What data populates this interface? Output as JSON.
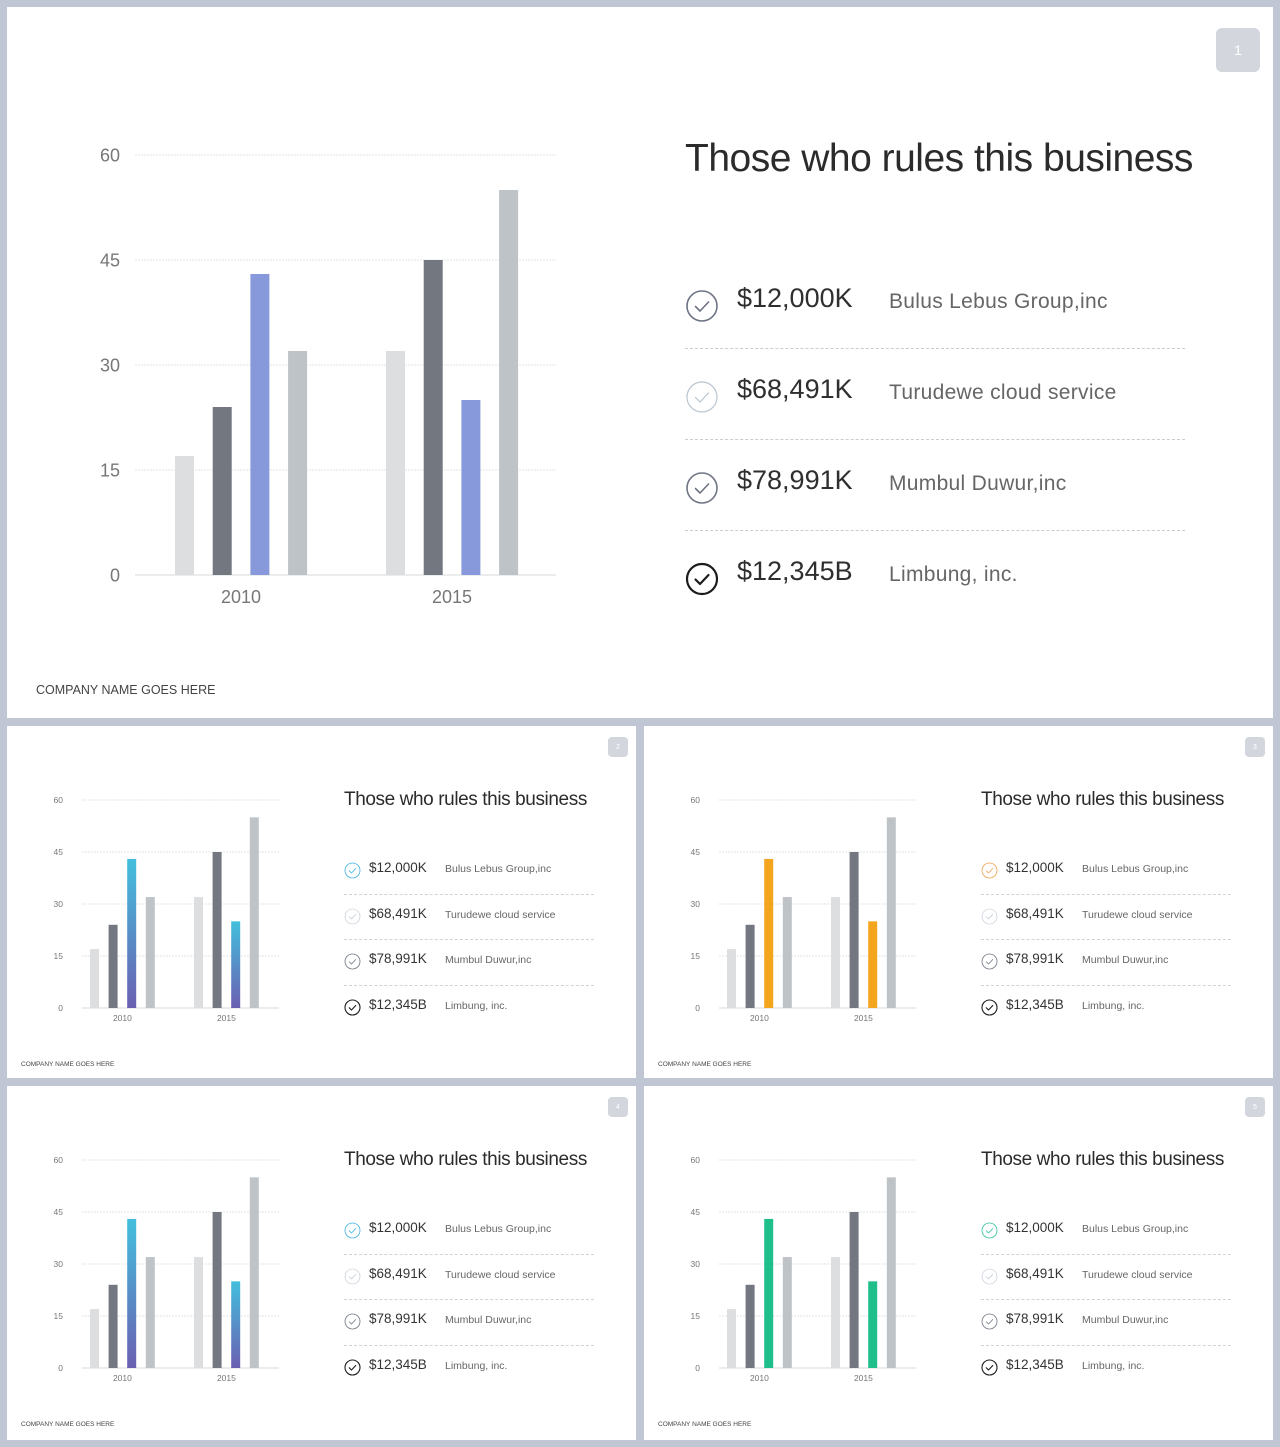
{
  "colors": {
    "light": "#dcdee0",
    "dark": "#737780",
    "silver": "#bec3c7",
    "grid": "#e1e3e6",
    "axis_text": "#777777"
  },
  "slides": [
    {
      "page": "1",
      "title": "Those who rules this business",
      "footer": "COMPANY NAME GOES HERE",
      "accent": "#8799db",
      "accent_gradient": null,
      "first_icon_color": "#6d7384",
      "items": [
        {
          "amount": "$12,000K",
          "company": "Bulus Lebus Group,inc"
        },
        {
          "amount": "$68,491K",
          "company": "Turudewe cloud service"
        },
        {
          "amount": "$78,991K",
          "company": "Mumbul Duwur,inc"
        },
        {
          "amount": "$12,345B",
          "company": "Limbung, inc."
        }
      ]
    },
    {
      "page": "2",
      "title": "Those who rules this business",
      "footer": "COMPANY NAME GOES HERE",
      "accent": "#49b3d6",
      "accent_gradient": [
        "#42bfdd",
        "#6b5fb2"
      ],
      "first_icon_color": "#3db0db",
      "items": [
        {
          "amount": "$12,000K",
          "company": "Bulus Lebus Group,inc"
        },
        {
          "amount": "$68,491K",
          "company": "Turudewe cloud service"
        },
        {
          "amount": "$78,991K",
          "company": "Mumbul Duwur,inc"
        },
        {
          "amount": "$12,345B",
          "company": "Limbung, inc."
        }
      ]
    },
    {
      "page": "3",
      "title": "Those who rules this business",
      "footer": "COMPANY NAME GOES HERE",
      "accent": "#f4a51e",
      "accent_gradient": null,
      "first_icon_color": "#f0a04b",
      "items": [
        {
          "amount": "$12,000K",
          "company": "Bulus Lebus Group,inc"
        },
        {
          "amount": "$68,491K",
          "company": "Turudewe cloud service"
        },
        {
          "amount": "$78,991K",
          "company": "Mumbul Duwur,inc"
        },
        {
          "amount": "$12,345B",
          "company": "Limbung, inc."
        }
      ]
    },
    {
      "page": "4",
      "title": "Those who rules this business",
      "footer": "COMPANY NAME GOES HERE",
      "accent": "#49b3d6",
      "accent_gradient": [
        "#42bfdd",
        "#6b5fb2"
      ],
      "first_icon_color": "#3db0db",
      "items": [
        {
          "amount": "$12,000K",
          "company": "Bulus Lebus Group,inc"
        },
        {
          "amount": "$68,491K",
          "company": "Turudewe cloud service"
        },
        {
          "amount": "$78,991K",
          "company": "Mumbul Duwur,inc"
        },
        {
          "amount": "$12,345B",
          "company": "Limbung, inc."
        }
      ]
    },
    {
      "page": "5",
      "title": "Those who rules this business",
      "footer": "COMPANY NAME GOES HERE",
      "accent": "#1fbf8c",
      "accent_gradient": null,
      "first_icon_color": "#2ec09a",
      "items": [
        {
          "amount": "$12,000K",
          "company": "Bulus Lebus Group,inc"
        },
        {
          "amount": "$68,491K",
          "company": "Turudewe cloud service"
        },
        {
          "amount": "$78,991K",
          "company": "Mumbul Duwur,inc"
        },
        {
          "amount": "$12,345B",
          "company": "Limbung, inc."
        }
      ]
    }
  ],
  "chart_data": {
    "type": "bar",
    "categories": [
      "2010",
      "2015"
    ],
    "series": [
      {
        "values": [
          17,
          32
        ]
      },
      {
        "values": [
          24,
          45
        ]
      },
      {
        "values": [
          43,
          25
        ]
      },
      {
        "values": [
          32,
          55
        ]
      }
    ],
    "ylim": [
      0,
      60
    ],
    "yticks": [
      0,
      15,
      30,
      45,
      60
    ],
    "grid": true,
    "title": "",
    "xlabel": "",
    "ylabel": ""
  }
}
